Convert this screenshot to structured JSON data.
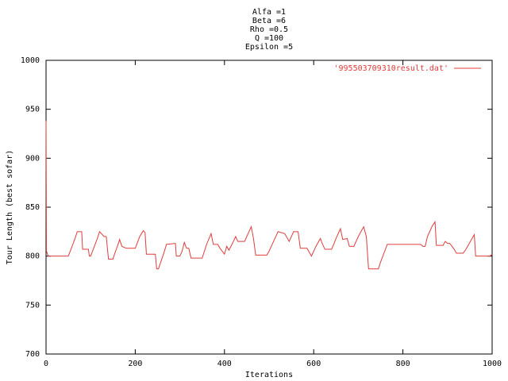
{
  "chart_data": {
    "type": "line",
    "title": [
      "Alfa =1",
      "Beta =6",
      "Rho =0.5",
      "Q =100",
      "Epsilon =5"
    ],
    "xlabel": "Iterations",
    "ylabel": "Tour Length (best sofar)",
    "xlim": [
      0,
      1000
    ],
    "ylim": [
      700,
      1000
    ],
    "xticks": [
      0,
      200,
      400,
      600,
      800,
      1000
    ],
    "yticks": [
      700,
      750,
      800,
      850,
      900,
      950,
      1000
    ],
    "legend": "top-right",
    "series": [
      {
        "name": "'995503709310result.dat'",
        "color": "#e03c3c",
        "x": [
          0,
          1,
          5,
          50,
          55,
          60,
          65,
          70,
          80,
          82,
          95,
          97,
          100,
          105,
          110,
          115,
          120,
          130,
          135,
          140,
          150,
          155,
          160,
          165,
          170,
          180,
          200,
          205,
          210,
          218,
          222,
          225,
          245,
          248,
          252,
          258,
          264,
          270,
          290,
          292,
          300,
          305,
          310,
          315,
          320,
          325,
          350,
          355,
          360,
          370,
          375,
          385,
          390,
          400,
          405,
          410,
          420,
          425,
          430,
          445,
          450,
          455,
          460,
          465,
          470,
          495,
          500,
          505,
          510,
          520,
          535,
          545,
          555,
          565,
          570,
          585,
          590,
          595,
          605,
          615,
          620,
          625,
          640,
          645,
          650,
          660,
          665,
          675,
          680,
          690,
          700,
          712,
          718,
          723,
          745,
          750,
          755,
          765,
          840,
          845,
          850,
          855,
          865,
          872,
          875,
          890,
          895,
          900,
          905,
          915,
          920,
          935,
          940,
          945,
          960,
          963,
          995,
          1000
        ],
        "values": [
          938,
          805,
          800,
          800,
          806,
          812,
          818,
          825,
          825,
          807,
          807,
          800,
          800,
          806,
          812,
          818,
          825,
          820,
          820,
          797,
          797,
          804,
          810,
          817,
          810,
          808,
          808,
          814,
          820,
          826,
          824,
          802,
          802,
          787,
          787,
          795,
          803,
          812,
          813,
          800,
          800,
          805,
          814,
          808,
          808,
          798,
          798,
          805,
          812,
          823,
          812,
          812,
          808,
          802,
          810,
          806,
          815,
          820,
          815,
          815,
          820,
          825,
          830,
          818,
          801,
          801,
          805,
          810,
          815,
          825,
          823,
          815,
          825,
          825,
          808,
          808,
          804,
          800,
          810,
          818,
          812,
          807,
          807,
          812,
          818,
          828,
          817,
          818,
          810,
          810,
          820,
          830,
          820,
          787,
          787,
          794,
          800,
          812,
          812,
          810,
          810,
          820,
          830,
          835,
          811,
          811,
          815,
          813,
          813,
          807,
          803,
          803,
          806,
          810,
          822,
          800,
          800,
          802
        ]
      }
    ]
  }
}
